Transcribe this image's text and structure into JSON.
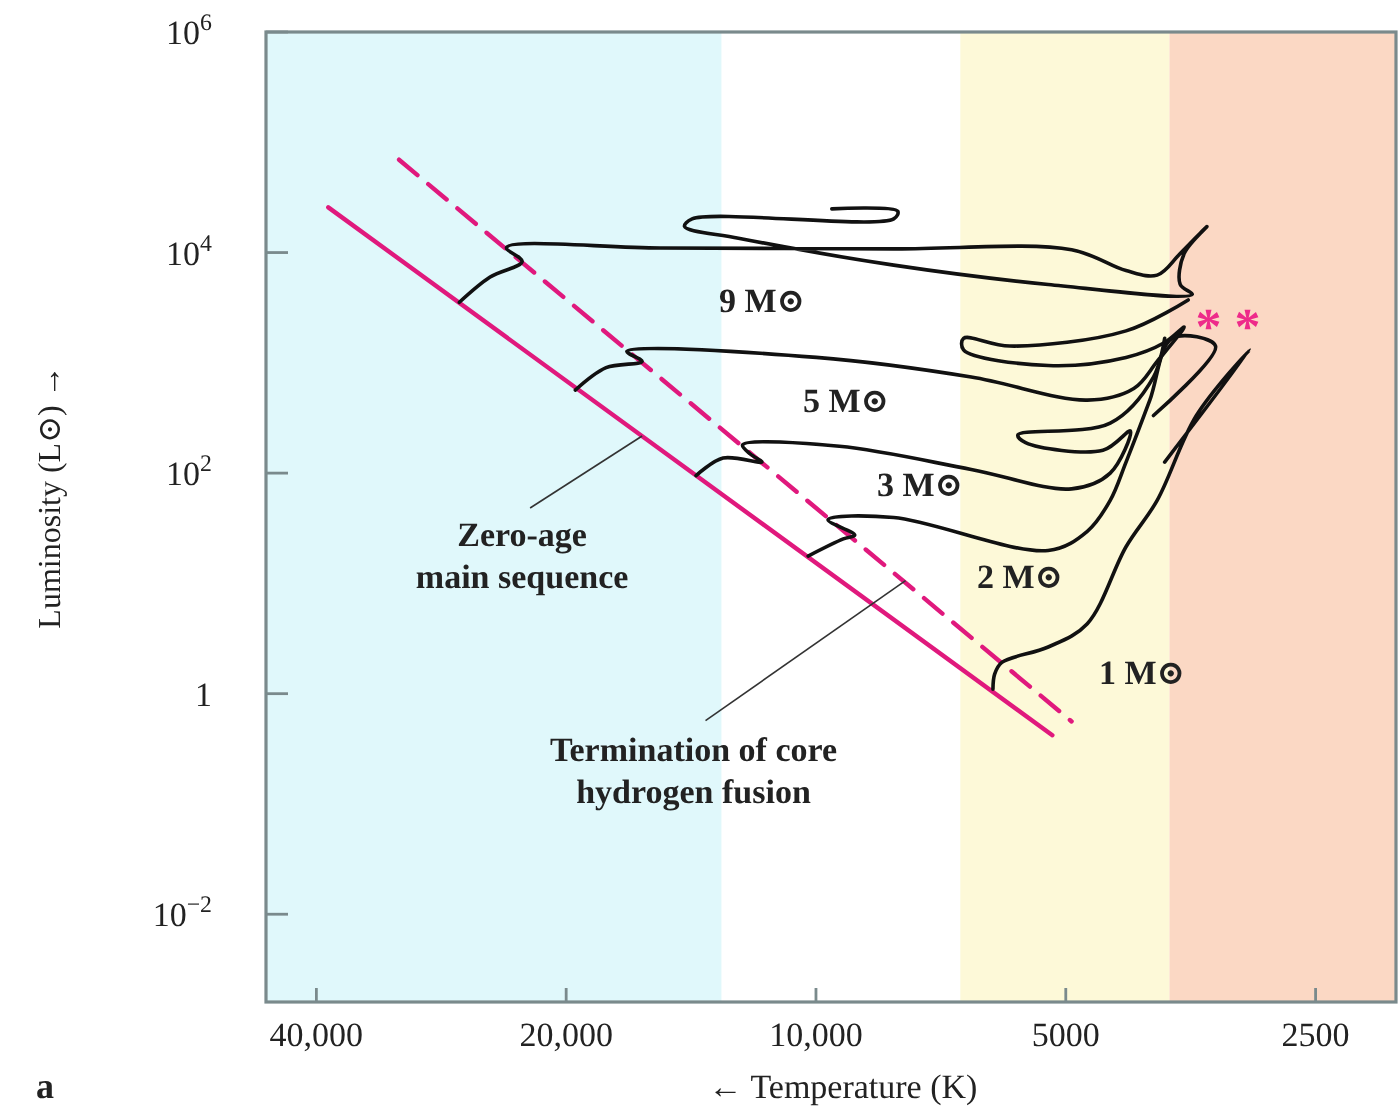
{
  "chart_data": {
    "type": "line",
    "xlabel": "← Temperature (K)",
    "ylabel": "Luminosity (L⊙) →",
    "log": "xy",
    "xlim": [
      46000,
      2000
    ],
    "ylim": [
      0.0016,
      1000000
    ],
    "xticks": [
      {
        "value": 40000,
        "label": "40,000"
      },
      {
        "value": 20000,
        "label": "20,000"
      },
      {
        "value": 10000,
        "label": "10,000"
      },
      5000,
      2500
    ],
    "yticks": [
      {
        "value": 0.01,
        "label": "10$^{−2}$"
      },
      1,
      {
        "value": 100,
        "label": "10$^{2}$"
      },
      {
        "value": 10000,
        "label": "10$^{4}$"
      },
      {
        "value": 1000000,
        "label": "10$^{6}$"
      }
    ],
    "grid": false,
    "line_style": "solid",
    "bands": [
      {
        "axis": "x",
        "from": 46000,
        "to": 13000,
        "color": "#e0f8fb"
      },
      {
        "axis": "x",
        "from": 6700,
        "to": 3750,
        "color": "#fdf9d8"
      },
      {
        "axis": "x",
        "from": 3750,
        "to": 2000,
        "color": "#fbd8c4"
      }
    ],
    "series": [
      {
        "color": "#e0197d",
        "x": [
          38700,
          5190
        ],
        "values": [
          25700,
          0.42
        ]
      },
      {
        "color": "#e0197d",
        "line_style": "dashed",
        "x": [
          31800,
          4920
        ],
        "values": [
          69500,
          0.56
        ]
      },
      {
        "name": "9 M⊙",
        "color": "#111111",
        "x": [
          26900,
          24700,
          22600,
          23600,
          15400,
          8060,
          4920,
          4230,
          3880,
          3640,
          3380,
          3600,
          3640,
          3520,
          5250,
          8060,
          12400,
          14400,
          14100,
          8060,
          7970,
          9570
        ],
        "values": [
          3540,
          6000,
          8300,
          11100,
          11000,
          10800,
          10600,
          6860,
          6240,
          9800,
          17200,
          9800,
          5140,
          4170,
          5140,
          7690,
          13500,
          17200,
          20200,
          20200,
          23700,
          24900
        ]
      },
      {
        "name": "5 M⊙",
        "color": "#111111",
        "x": [
          19500,
          17900,
          16200,
          16900,
          9990,
          6500,
          4710,
          4140,
          3880,
          3600,
          3800,
          4230,
          5250,
          6640,
          6640,
          5840,
          4230,
          3560
        ],
        "values": [
          566,
          904,
          1030,
          1270,
          1120,
          743,
          459,
          585,
          1030,
          2110,
          1530,
          1120,
          946,
          1310,
          1670,
          1420,
          1950,
          3720
        ]
      },
      {
        "name": "3 M⊙",
        "color": "#111111",
        "x": [
          13950,
          12940,
          11620,
          12000,
          12260,
          9370,
          6500,
          4920,
          4420,
          4180,
          4510,
          5590,
          5710,
          4420,
          3920,
          3800
        ],
        "values": [
          95,
          137,
          126,
          149,
          180,
          175,
          108,
          72,
          100,
          241,
          161,
          189,
          222,
          284,
          743,
          1670
        ]
      },
      {
        "name": "2 M⊙",
        "color": "#111111",
        "x": [
          10220,
          9270,
          8980,
          9670,
          8060,
          5250,
          4710,
          4420,
          4230,
          3960,
          3720,
          3300,
          3920
        ],
        "values": [
          17.7,
          25.3,
          27.4,
          37.8,
          39.6,
          19.9,
          29.7,
          56.6,
          126,
          459,
          1670,
          1420,
          333
        ]
      },
      {
        "name": "1 M⊙",
        "color": "#111111",
        "x": [
          6120,
          6090,
          5970,
          5250,
          4710,
          4230,
          3880,
          3480,
          3000,
          3800
        ],
        "values": [
          1.1,
          1.51,
          1.92,
          2.65,
          4.31,
          21.5,
          56.6,
          333,
          1310,
          126
        ]
      }
    ],
    "annotations": [
      {
        "text": "Zero-age main sequence",
        "x": 16200,
        "y": 217
      },
      {
        "text": "Termination of core hydrogen fusion",
        "x": 7800,
        "y": 10.6
      },
      "* *",
      "a"
    ]
  }
}
